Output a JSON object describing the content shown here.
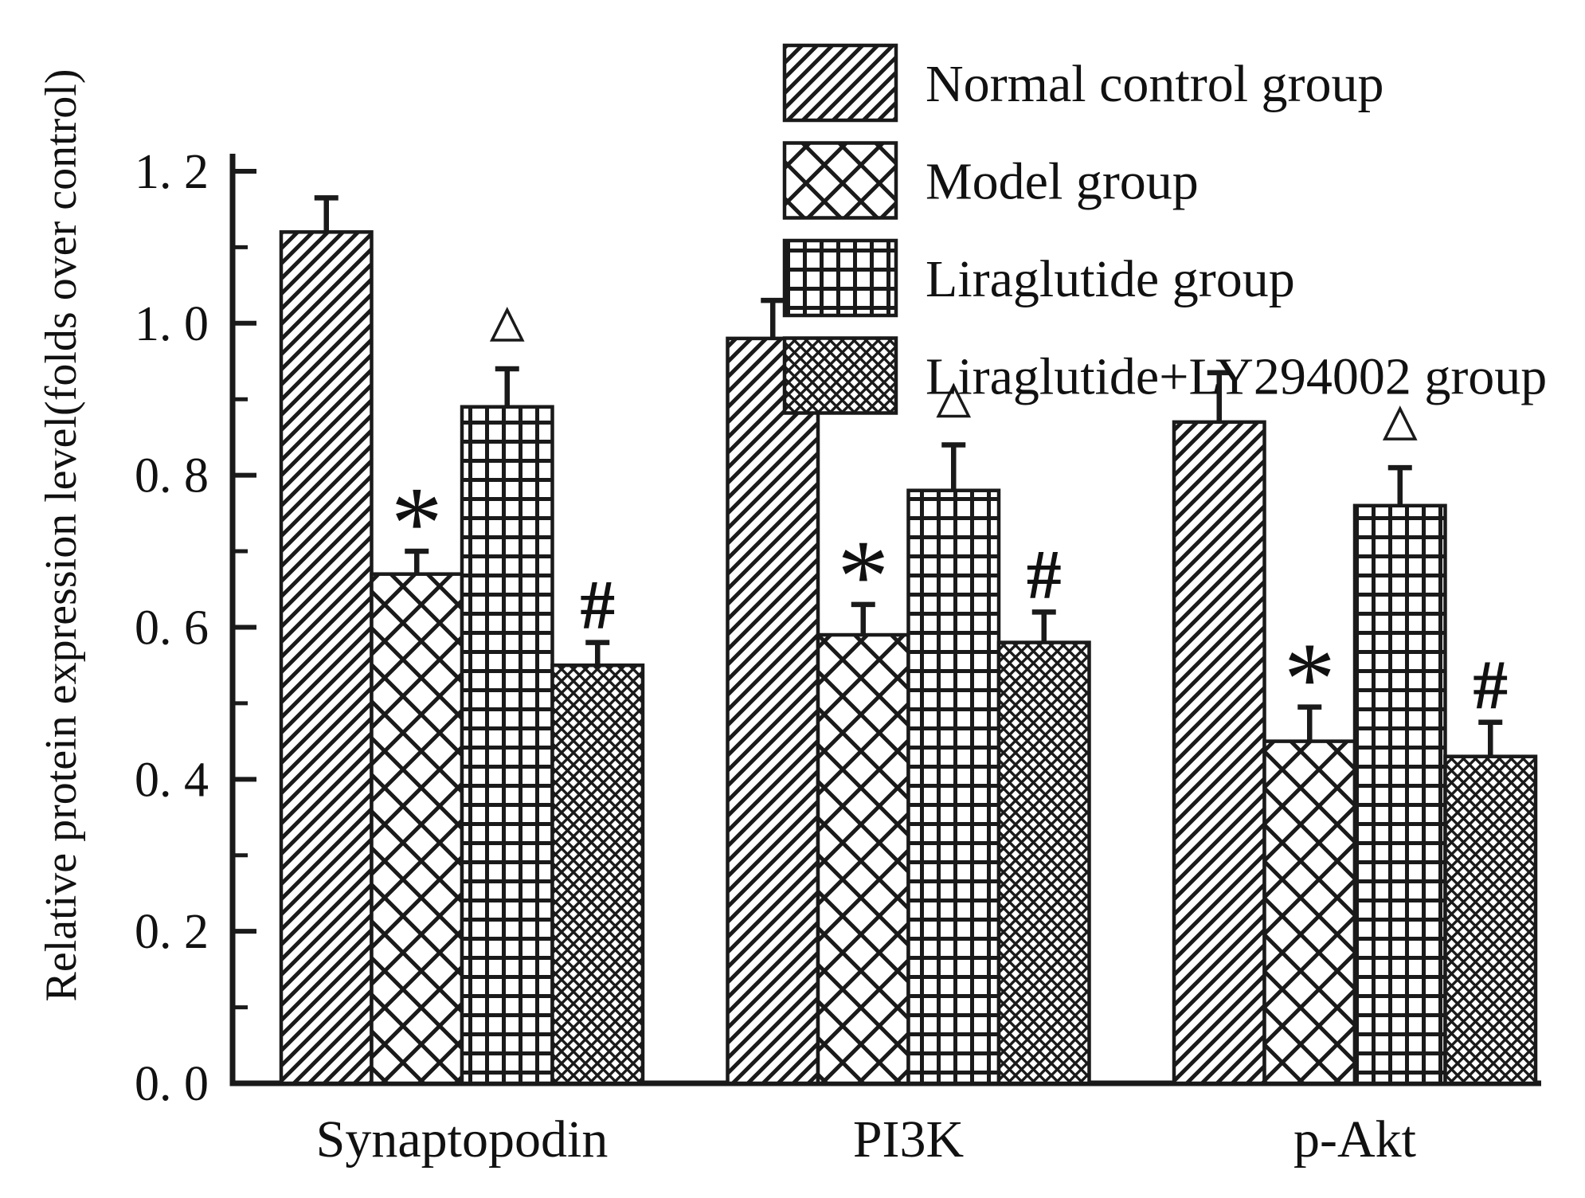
{
  "figure": {
    "background": "#ffffff",
    "ink_color": "#1a1a1a"
  },
  "chart_data": {
    "type": "bar",
    "title": "",
    "xlabel": "",
    "ylabel": "Relative protein expression level(folds over control)",
    "ylim": [
      0,
      1.2
    ],
    "ytick_step": 0.2,
    "ytick_minor_step": 0.1,
    "yticks": [
      {
        "value": 0.0,
        "label": "0. 0"
      },
      {
        "value": 0.2,
        "label": "0. 2"
      },
      {
        "value": 0.4,
        "label": "0. 4"
      },
      {
        "value": 0.6,
        "label": "0. 6"
      },
      {
        "value": 0.8,
        "label": "0. 8"
      },
      {
        "value": 1.0,
        "label": "1. 0"
      },
      {
        "value": 1.2,
        "label": "1. 2"
      }
    ],
    "minor_tick_values": [
      0.1,
      0.3,
      0.5,
      0.7,
      0.9,
      1.1
    ],
    "categories": [
      "Synaptopodin",
      "PI3K",
      "p-Akt"
    ],
    "series": [
      {
        "name": "Normal control group",
        "pattern": "diagonal-hatch",
        "values": [
          1.12,
          0.98,
          0.87
        ],
        "errors": [
          0.045,
          0.05,
          0.065
        ],
        "annotations": [
          null,
          null,
          null
        ]
      },
      {
        "name": "Model group",
        "pattern": "cross-hatch-large",
        "values": [
          0.67,
          0.59,
          0.45
        ],
        "errors": [
          0.03,
          0.04,
          0.045
        ],
        "annotations": [
          "*",
          "*",
          "*"
        ]
      },
      {
        "name": "Liraglutide group",
        "pattern": "grid",
        "values": [
          0.89,
          0.78,
          0.76
        ],
        "errors": [
          0.05,
          0.06,
          0.05
        ],
        "annotations": [
          "△",
          "△",
          "△"
        ]
      },
      {
        "name": "Liraglutide+LY294002 group",
        "pattern": "dense-cross-hatch",
        "values": [
          0.55,
          0.58,
          0.43
        ],
        "errors": [
          0.03,
          0.04,
          0.045
        ],
        "annotations": [
          "#",
          "#",
          "#"
        ]
      }
    ],
    "legend_position": "top-right",
    "grid": false,
    "error_bars": "upper-only",
    "colors": {
      "bar_fill": "#ffffff",
      "stroke": "#1a1a1a",
      "background": "#ffffff"
    }
  }
}
